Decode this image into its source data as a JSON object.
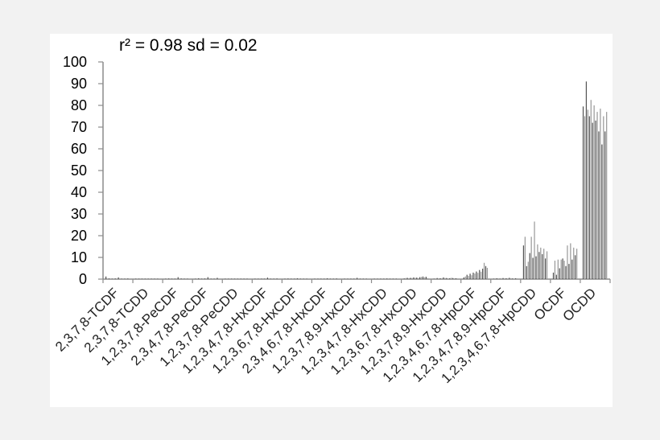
{
  "chart_data": {
    "type": "bar",
    "annotation": "r² = 0.98 sd = 0.02",
    "categories": [
      "2,3,7,8-TCDF",
      "2,3,7,8-TCDD",
      "1,2,3,7,8-PeCDF",
      "2,3,4,7,8-PeCDF",
      "1,2,3,7,8-PeCDD",
      "1,2,3,4,7,8-HxCDF",
      "1,2,3,6,7,8-HxCDF",
      "2,3,4,6,7,8-HxCDF",
      "1,2,3,7,8,9-HxCDF",
      "1,2,3,4,7,8-HxCDD",
      "1,2,3,6,7,8-HxCDD",
      "1,2,3,7,8,9-HxCDD",
      "1,2,3,4,6,7,8-HpCDF",
      "1,2,3,4,7,8,9-HpCDF",
      "1,2,3,4,6,7,8-HpCDD",
      "OCDF",
      "OCDD"
    ],
    "ylim": [
      0,
      100
    ],
    "yticks": [
      "0",
      "10",
      "20",
      "30",
      "40",
      "50",
      "60",
      "70",
      "80",
      "90",
      "100"
    ],
    "bars_per_category": 16,
    "series_colors": [
      "#555555",
      "#9a9a9a"
    ],
    "values": [
      [
        1.2,
        0.1,
        0.3,
        0.2,
        0.1,
        0.2,
        0.3,
        0.1,
        0.8,
        0.1,
        0.2,
        0.1,
        0.1,
        0.1,
        0.3,
        0.1
      ],
      [
        0.1,
        0.1,
        0.2,
        0.1,
        0.1,
        0.1,
        0.1,
        0.1,
        0.1,
        0.1,
        0.1,
        0.1,
        0.1,
        0.1,
        0.1,
        0.1
      ],
      [
        0.2,
        0.1,
        0.3,
        0.2,
        0.1,
        0.2,
        0.2,
        0.2,
        0.9,
        0.2,
        0.3,
        0.2,
        0.1,
        0.1,
        0.2,
        0.1
      ],
      [
        0.1,
        0.2,
        0.4,
        0.1,
        0.2,
        0.1,
        0.3,
        0.2,
        0.9,
        0.2,
        0.1,
        0.1,
        0.2,
        0.1,
        0.6,
        0.1
      ],
      [
        0.1,
        0.1,
        0.2,
        0.1,
        0.1,
        0.1,
        0.1,
        0.2,
        0.1,
        0.1,
        0.1,
        0.2,
        0.1,
        0.1,
        0.1,
        0.1
      ],
      [
        0.2,
        0.1,
        0.2,
        0.2,
        0.1,
        0.3,
        0.2,
        0.1,
        0.7,
        0.1,
        0.2,
        0.1,
        0.2,
        0.1,
        0.3,
        0.1
      ],
      [
        0.1,
        0.2,
        0.3,
        0.1,
        0.2,
        0.1,
        0.2,
        0.3,
        0.4,
        0.1,
        0.2,
        0.1,
        0.1,
        0.2,
        0.2,
        0.1
      ],
      [
        0.2,
        0.1,
        0.2,
        0.3,
        0.1,
        0.2,
        0.1,
        0.2,
        0.4,
        0.2,
        0.1,
        0.2,
        0.1,
        0.1,
        0.3,
        0.1
      ],
      [
        0.1,
        0.1,
        0.2,
        0.1,
        0.1,
        0.2,
        0.1,
        0.1,
        0.6,
        0.1,
        0.2,
        0.1,
        0.1,
        0.1,
        0.2,
        0.1
      ],
      [
        0.1,
        0.2,
        0.2,
        0.1,
        0.1,
        0.1,
        0.2,
        0.2,
        0.3,
        0.1,
        0.1,
        0.1,
        0.2,
        0.1,
        0.2,
        0.1
      ],
      [
        0.3,
        0.5,
        0.6,
        0.4,
        0.6,
        0.5,
        0.8,
        0.6,
        0.7,
        0.5,
        0.9,
        1.0,
        1.2,
        0.8,
        1.1,
        0.5
      ],
      [
        0.2,
        0.3,
        0.5,
        0.3,
        0.4,
        0.3,
        0.8,
        0.5,
        0.5,
        0.3,
        0.4,
        0.6,
        0.5,
        0.3,
        0.4,
        0.3
      ],
      [
        0.8,
        1.2,
        2.0,
        1.5,
        2.5,
        1.8,
        3.0,
        2.6,
        3.5,
        2.9,
        4.2,
        3.4,
        4.8,
        7.5,
        6.0,
        5.2
      ],
      [
        0.2,
        0.3,
        0.4,
        0.3,
        0.2,
        0.3,
        0.5,
        0.3,
        0.4,
        0.3,
        0.6,
        0.4,
        0.3,
        0.2,
        0.4,
        0.3
      ],
      [
        15.5,
        19.5,
        6.0,
        8.0,
        12.0,
        19.5,
        9.8,
        26.5,
        10.5,
        16.0,
        12.5,
        14.5,
        11.5,
        14.0,
        9.5,
        12.8
      ],
      [
        3.0,
        8.5,
        2.0,
        9.0,
        5.0,
        9.0,
        9.5,
        8.5,
        6.0,
        15.5,
        7.0,
        16.5,
        9.0,
        14.5,
        11.0,
        14.0
      ],
      [
        79.5,
        75.0,
        91.0,
        78.0,
        75.0,
        82.5,
        72.0,
        80.0,
        73.0,
        77.0,
        68.0,
        78.5,
        62.0,
        75.0,
        68.0,
        77.0
      ]
    ]
  }
}
